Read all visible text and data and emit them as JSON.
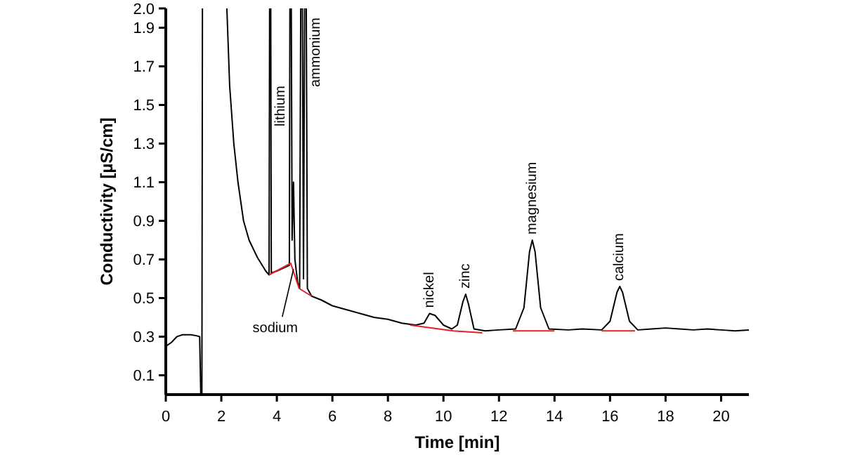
{
  "chart_data": {
    "type": "line",
    "xlabel": "Time [min]",
    "ylabel": "Conductivity [µS/cm]",
    "xlim": [
      0,
      21
    ],
    "ylim": [
      0,
      2
    ],
    "xticks": [
      0,
      2,
      4,
      6,
      8,
      10,
      12,
      14,
      16,
      18,
      20
    ],
    "yticks": [
      0.1,
      0.3,
      0.5,
      0.7,
      0.9,
      1.1,
      1.3,
      1.5,
      1.7,
      1.9,
      {
        "value": 2,
        "label": "2.0"
      }
    ],
    "grid": false,
    "marker": "none",
    "line_style": "solid",
    "series": [
      {
        "color": "#000000",
        "x": [
          0,
          0.2,
          0.4,
          0.6,
          0.9,
          1.1,
          1.22,
          1.26,
          1.3,
          1.32,
          1.8,
          2.2,
          2.3,
          2.45,
          2.6,
          2.8,
          3.0,
          3.3,
          3.6,
          3.72,
          3.74,
          3.78,
          3.8,
          4.0,
          4.3,
          4.45,
          4.47,
          4.52,
          4.55,
          4.6,
          4.65,
          4.75,
          4.82,
          4.86,
          4.92,
          4.96,
          5.0,
          5.06,
          5.1,
          5.25,
          5.6,
          6,
          6.5,
          7,
          7.5,
          8,
          8.5,
          9,
          9.3,
          9.5,
          9.7,
          10,
          10.3,
          10.5,
          10.7,
          10.8,
          10.9,
          11.1,
          11.5,
          12,
          12.6,
          12.9,
          13.1,
          13.2,
          13.3,
          13.5,
          13.8,
          14.5,
          15,
          15.7,
          16.0,
          16.25,
          16.35,
          16.45,
          16.7,
          17,
          17.5,
          18,
          18.5,
          19,
          19.5,
          20,
          20.5,
          21
        ],
        "values": [
          0.25,
          0.27,
          0.3,
          0.31,
          0.31,
          0.305,
          0.3,
          0,
          0,
          2,
          null,
          2,
          1.6,
          1.3,
          1.1,
          0.9,
          0.8,
          0.71,
          0.64,
          0.62,
          2,
          2,
          0.63,
          0.64,
          0.66,
          0.67,
          2,
          2,
          0.8,
          1.1,
          0.7,
          0.58,
          0.55,
          2,
          2,
          0.6,
          2,
          2,
          0.55,
          0.51,
          0.49,
          0.46,
          0.44,
          0.42,
          0.4,
          0.39,
          0.37,
          0.36,
          0.37,
          0.42,
          0.41,
          0.36,
          0.34,
          0.36,
          0.48,
          0.52,
          0.47,
          0.34,
          0.33,
          0.335,
          0.34,
          0.45,
          0.74,
          0.8,
          0.74,
          0.45,
          0.34,
          0.335,
          0.34,
          0.335,
          0.38,
          0.53,
          0.56,
          0.53,
          0.38,
          0.335,
          0.34,
          0.345,
          0.34,
          0.335,
          0.34,
          0.335,
          0.33,
          0.335
        ]
      },
      {
        "color": "#e0202a",
        "x": [
          3.72,
          4.5,
          4.8,
          5.25,
          5.3,
          8.8,
          10.35,
          11.4,
          11.5,
          12.5,
          14.0,
          14.5,
          15.7,
          16.9
        ],
        "values": [
          0.62,
          0.68,
          0.55,
          0.51,
          null,
          0.36,
          0.33,
          0.32,
          null,
          0.33,
          0.33,
          null,
          0.33,
          0.33
        ]
      }
    ],
    "annotations": [
      "lithium",
      "ammonium",
      {
        "text": "sodium",
        "x": 4.6,
        "y": 0.65
      },
      {
        "text": "nickel",
        "x": 9.5,
        "y": 0.42
      },
      {
        "text": "zinc",
        "x": 10.8,
        "y": 0.52
      },
      {
        "text": "magnesium",
        "x": 13.2,
        "y": 0.8
      },
      {
        "text": "calcium",
        "x": 16.35,
        "y": 0.56
      }
    ]
  }
}
